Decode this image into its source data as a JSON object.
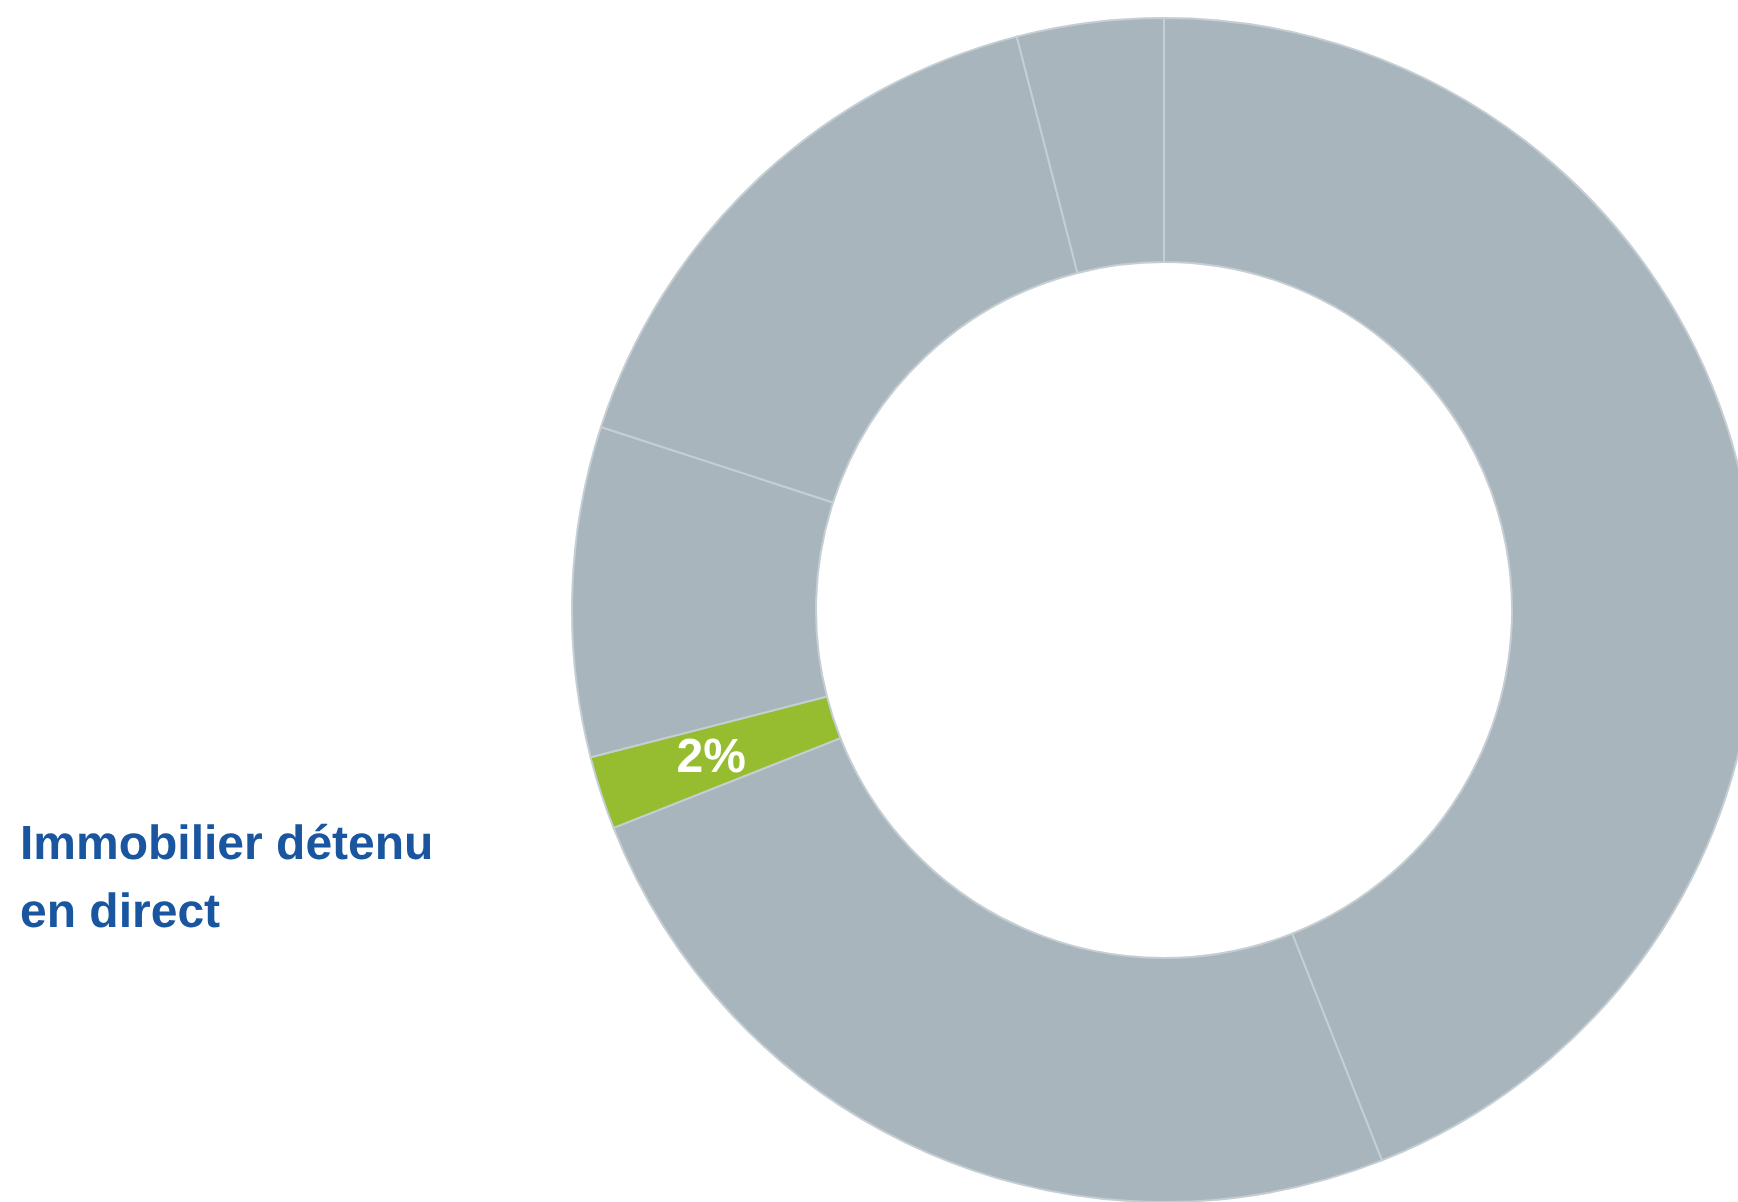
{
  "chart_data": {
    "type": "donut",
    "categories": [
      null,
      null,
      "Immobilier détenu en direct",
      null,
      null,
      null
    ],
    "values": [
      44,
      25,
      2,
      9,
      16,
      4
    ],
    "colors": [
      "#a8b5bc",
      "#a8b5bc",
      "#95bd2f",
      "#a8b5bc",
      "#a8b5bc",
      "#a8b5bc"
    ],
    "value_labels": [
      null,
      null,
      "2%",
      null,
      null,
      null
    ]
  }
}
